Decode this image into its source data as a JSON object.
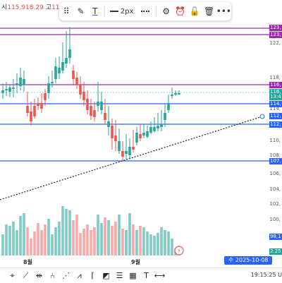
{
  "ohlc": {
    "prefix": "시",
    "value": "115,918.29",
    "label2": "고",
    "value2": "11"
  },
  "toolbar": {
    "icons": [
      "grid-dots-icon",
      "pencil-icon",
      "text-color-icon"
    ],
    "stroke_width": "2px",
    "icons2": [
      "settings-gear-icon",
      "alarm-clock-icon",
      "unlock-icon",
      "trash-icon",
      "more-icon"
    ]
  },
  "price_axis": {
    "labels": [
      "122,",
      "118,",
      "114,",
      "112,",
      "110,",
      "108,",
      "106,",
      "104,",
      "102,",
      "100,"
    ],
    "tags": [
      {
        "text": "123,",
        "color": "#9c27b0"
      },
      {
        "text": "123,",
        "color": "#9c27b0"
      },
      {
        "text": "116,",
        "color": "#9c27b0"
      },
      {
        "text": "116,",
        "color": "#26a69a"
      },
      {
        "text": "13:4",
        "color": "#26a69a"
      },
      {
        "text": "114,",
        "color": "#2962ff"
      },
      {
        "text": "112,",
        "color": "#2962ff"
      },
      {
        "text": "112,",
        "color": "#2962ff"
      },
      {
        "text": "107,",
        "color": "#2962ff"
      },
      {
        "text": "98,1",
        "color": "#2962ff"
      },
      {
        "text": "2.25",
        "color": "#26a69a"
      }
    ]
  },
  "date_axis": {
    "labels": [
      "8월",
      "9월"
    ],
    "crosshair_date": "수 2025-10-08"
  },
  "clock": "19:15:25 U",
  "bottom_tools": [
    "crosshair-icon",
    "trendline-icon",
    "channel-icon",
    "fork-icon",
    "pattern-icon",
    "path-icon",
    "bracket-icon",
    "long-position-icon",
    "fib-icon",
    "grid-icon",
    "text-icon",
    "measure-icon"
  ],
  "colors": {
    "up": "#26a69a",
    "down": "#ef5350",
    "level_blue": "#2962ff",
    "level_purple": "#9c27b0",
    "vol_up": "#80cbc4",
    "vol_down": "#f7a9a7"
  }
}
